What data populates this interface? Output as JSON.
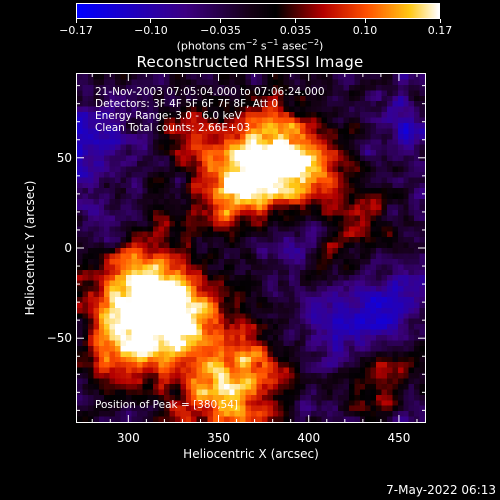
{
  "colorbar": {
    "tick_labels": [
      "−0.17",
      "−0.10",
      "−0.035",
      "0.035",
      "0.10",
      "0.17"
    ],
    "tick_values": [
      -0.17,
      -0.1,
      -0.035,
      0.035,
      0.1,
      0.17
    ],
    "units_main": "(photons cm",
    "units_exp1": "−2",
    "units_mid": " s",
    "units_exp2": "−1",
    "units_end": " asec",
    "units_exp3": "−2",
    "units_close": ")",
    "colors": [
      "#0000ff",
      "#1a0066",
      "#000000",
      "#000000",
      "#cc0000",
      "#ff6600",
      "#ffcc00",
      "#ffffff"
    ]
  },
  "title": "Reconstructed RHESSI Image",
  "info": {
    "line1": "21-Nov-2003 07:05:04.000 to 07:06:24.000",
    "line2": "Detectors: 3F 4F 5F 6F 7F 8F, Att 0",
    "line3": "Energy Range: 3.0 - 6.0 keV",
    "line4": "Clean     Total counts: 2.66E+03"
  },
  "peak": "Position of Peak = [380,54]",
  "xaxis": {
    "label": "Heliocentric X (arcsec)",
    "range": [
      271,
      465
    ],
    "ticks": [
      300,
      350,
      400,
      450
    ],
    "tick_labels": [
      "300",
      "350",
      "400",
      "450"
    ]
  },
  "yaxis": {
    "label": "Heliocentric Y (arcsec)",
    "range": [
      -97,
      97
    ],
    "ticks": [
      50,
      0,
      -50
    ],
    "tick_labels": [
      "50",
      "0",
      "−50"
    ]
  },
  "footer": "7-May-2022 06:13",
  "chart_data": {
    "type": "heatmap",
    "title": "Reconstructed RHESSI Image",
    "xlabel": "Heliocentric X (arcsec)",
    "ylabel": "Heliocentric Y (arcsec)",
    "xlim": [
      271,
      465
    ],
    "ylim": [
      -97,
      97
    ],
    "color_range": [
      -0.17,
      0.17
    ],
    "peak": [
      380,
      54
    ]
  }
}
